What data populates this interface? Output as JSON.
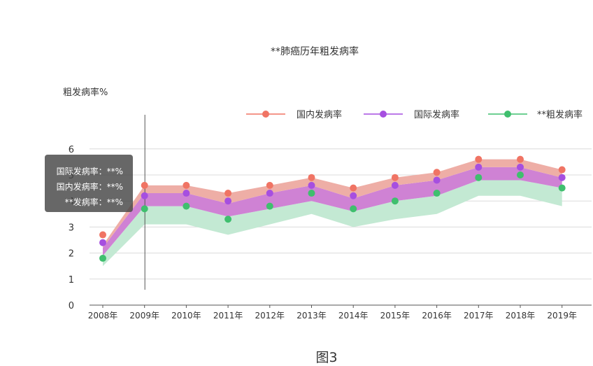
{
  "chart_data": {
    "type": "line",
    "title": "**肺癌历年粗发病率",
    "ylabel": "粗发病率%",
    "xlabel": "",
    "categories": [
      "2008年",
      "2009年",
      "2010年",
      "2011年",
      "2012年",
      "2013年",
      "2014年",
      "2015年",
      "2016年",
      "2017年",
      "2018年",
      "2019年"
    ],
    "ylim": [
      0,
      7
    ],
    "yticks": [
      0,
      1,
      2,
      3,
      4,
      5,
      6
    ],
    "grid": true,
    "legend_position": "top-right",
    "series": [
      {
        "name": "国内发病率",
        "color": "#f07464",
        "band_color": "#eeaea6",
        "values": [
          2.7,
          4.6,
          4.6,
          4.3,
          4.6,
          4.9,
          4.5,
          4.9,
          5.1,
          5.6,
          5.6,
          5.2
        ],
        "band": [
          2.3,
          4.6,
          4.6,
          4.3,
          4.6,
          4.9,
          4.5,
          4.9,
          5.1,
          5.6,
          5.6,
          5.2
        ],
        "band_low": [
          2.2,
          4.3,
          4.3,
          3.9,
          4.3,
          4.6,
          4.1,
          4.6,
          4.8,
          5.3,
          5.3,
          4.9
        ]
      },
      {
        "name": "国际发病率",
        "color": "#a64fe0",
        "band_color": "#cf82d4",
        "values": [
          2.4,
          4.2,
          4.3,
          4.0,
          4.3,
          4.6,
          4.2,
          4.6,
          4.8,
          5.3,
          5.3,
          4.9
        ],
        "band": [
          2.2,
          4.3,
          4.3,
          3.9,
          4.3,
          4.6,
          4.1,
          4.6,
          4.8,
          5.3,
          5.3,
          4.9
        ],
        "band_low": [
          1.9,
          3.8,
          3.8,
          3.4,
          3.7,
          4.0,
          3.6,
          4.0,
          4.2,
          4.8,
          4.8,
          4.5
        ]
      },
      {
        "name": "**粗发病率",
        "color": "#3fbf6e",
        "band_color": "#c3e9d3",
        "values": [
          1.8,
          3.7,
          3.8,
          3.3,
          3.8,
          4.3,
          3.7,
          4.0,
          4.3,
          4.9,
          5.0,
          4.5
        ],
        "band": [
          1.9,
          3.8,
          3.8,
          3.4,
          3.7,
          4.0,
          3.6,
          4.0,
          4.2,
          4.8,
          4.8,
          4.5
        ],
        "band_low": [
          1.5,
          3.1,
          3.1,
          2.7,
          3.1,
          3.5,
          3.0,
          3.3,
          3.5,
          4.2,
          4.2,
          3.8
        ]
      }
    ],
    "tooltip": {
      "rows": [
        "国际发病率：**%",
        "国内发病率：**%",
        "**发病率：**%"
      ],
      "category_index": 1
    },
    "caption": "图3"
  }
}
